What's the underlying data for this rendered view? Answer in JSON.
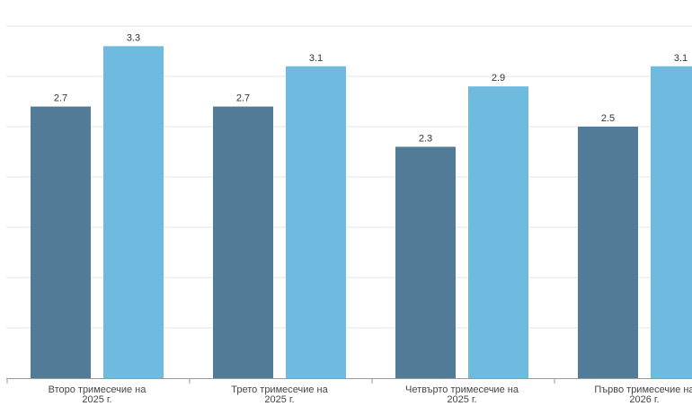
{
  "chart_data": {
    "type": "bar",
    "categories": [
      [
        "Второ тримесечие на",
        "2025 г."
      ],
      [
        "Трето тримесечие на",
        "2025 г."
      ],
      [
        "Четвърто тримесечие на",
        "2025 г."
      ],
      [
        "Първо тримесечие на",
        "2026 г."
      ]
    ],
    "series": [
      {
        "color": "#527b97",
        "values": [
          2.7,
          2.7,
          2.3,
          2.5
        ]
      },
      {
        "color": "#6fbadf",
        "values": [
          3.3,
          3.1,
          2.9,
          3.1
        ]
      }
    ],
    "ylim": [
      0,
      3.5
    ],
    "grid": true,
    "grid_color": "#e6e6e6",
    "axis_color": "#999999",
    "label_decimals": 1
  }
}
